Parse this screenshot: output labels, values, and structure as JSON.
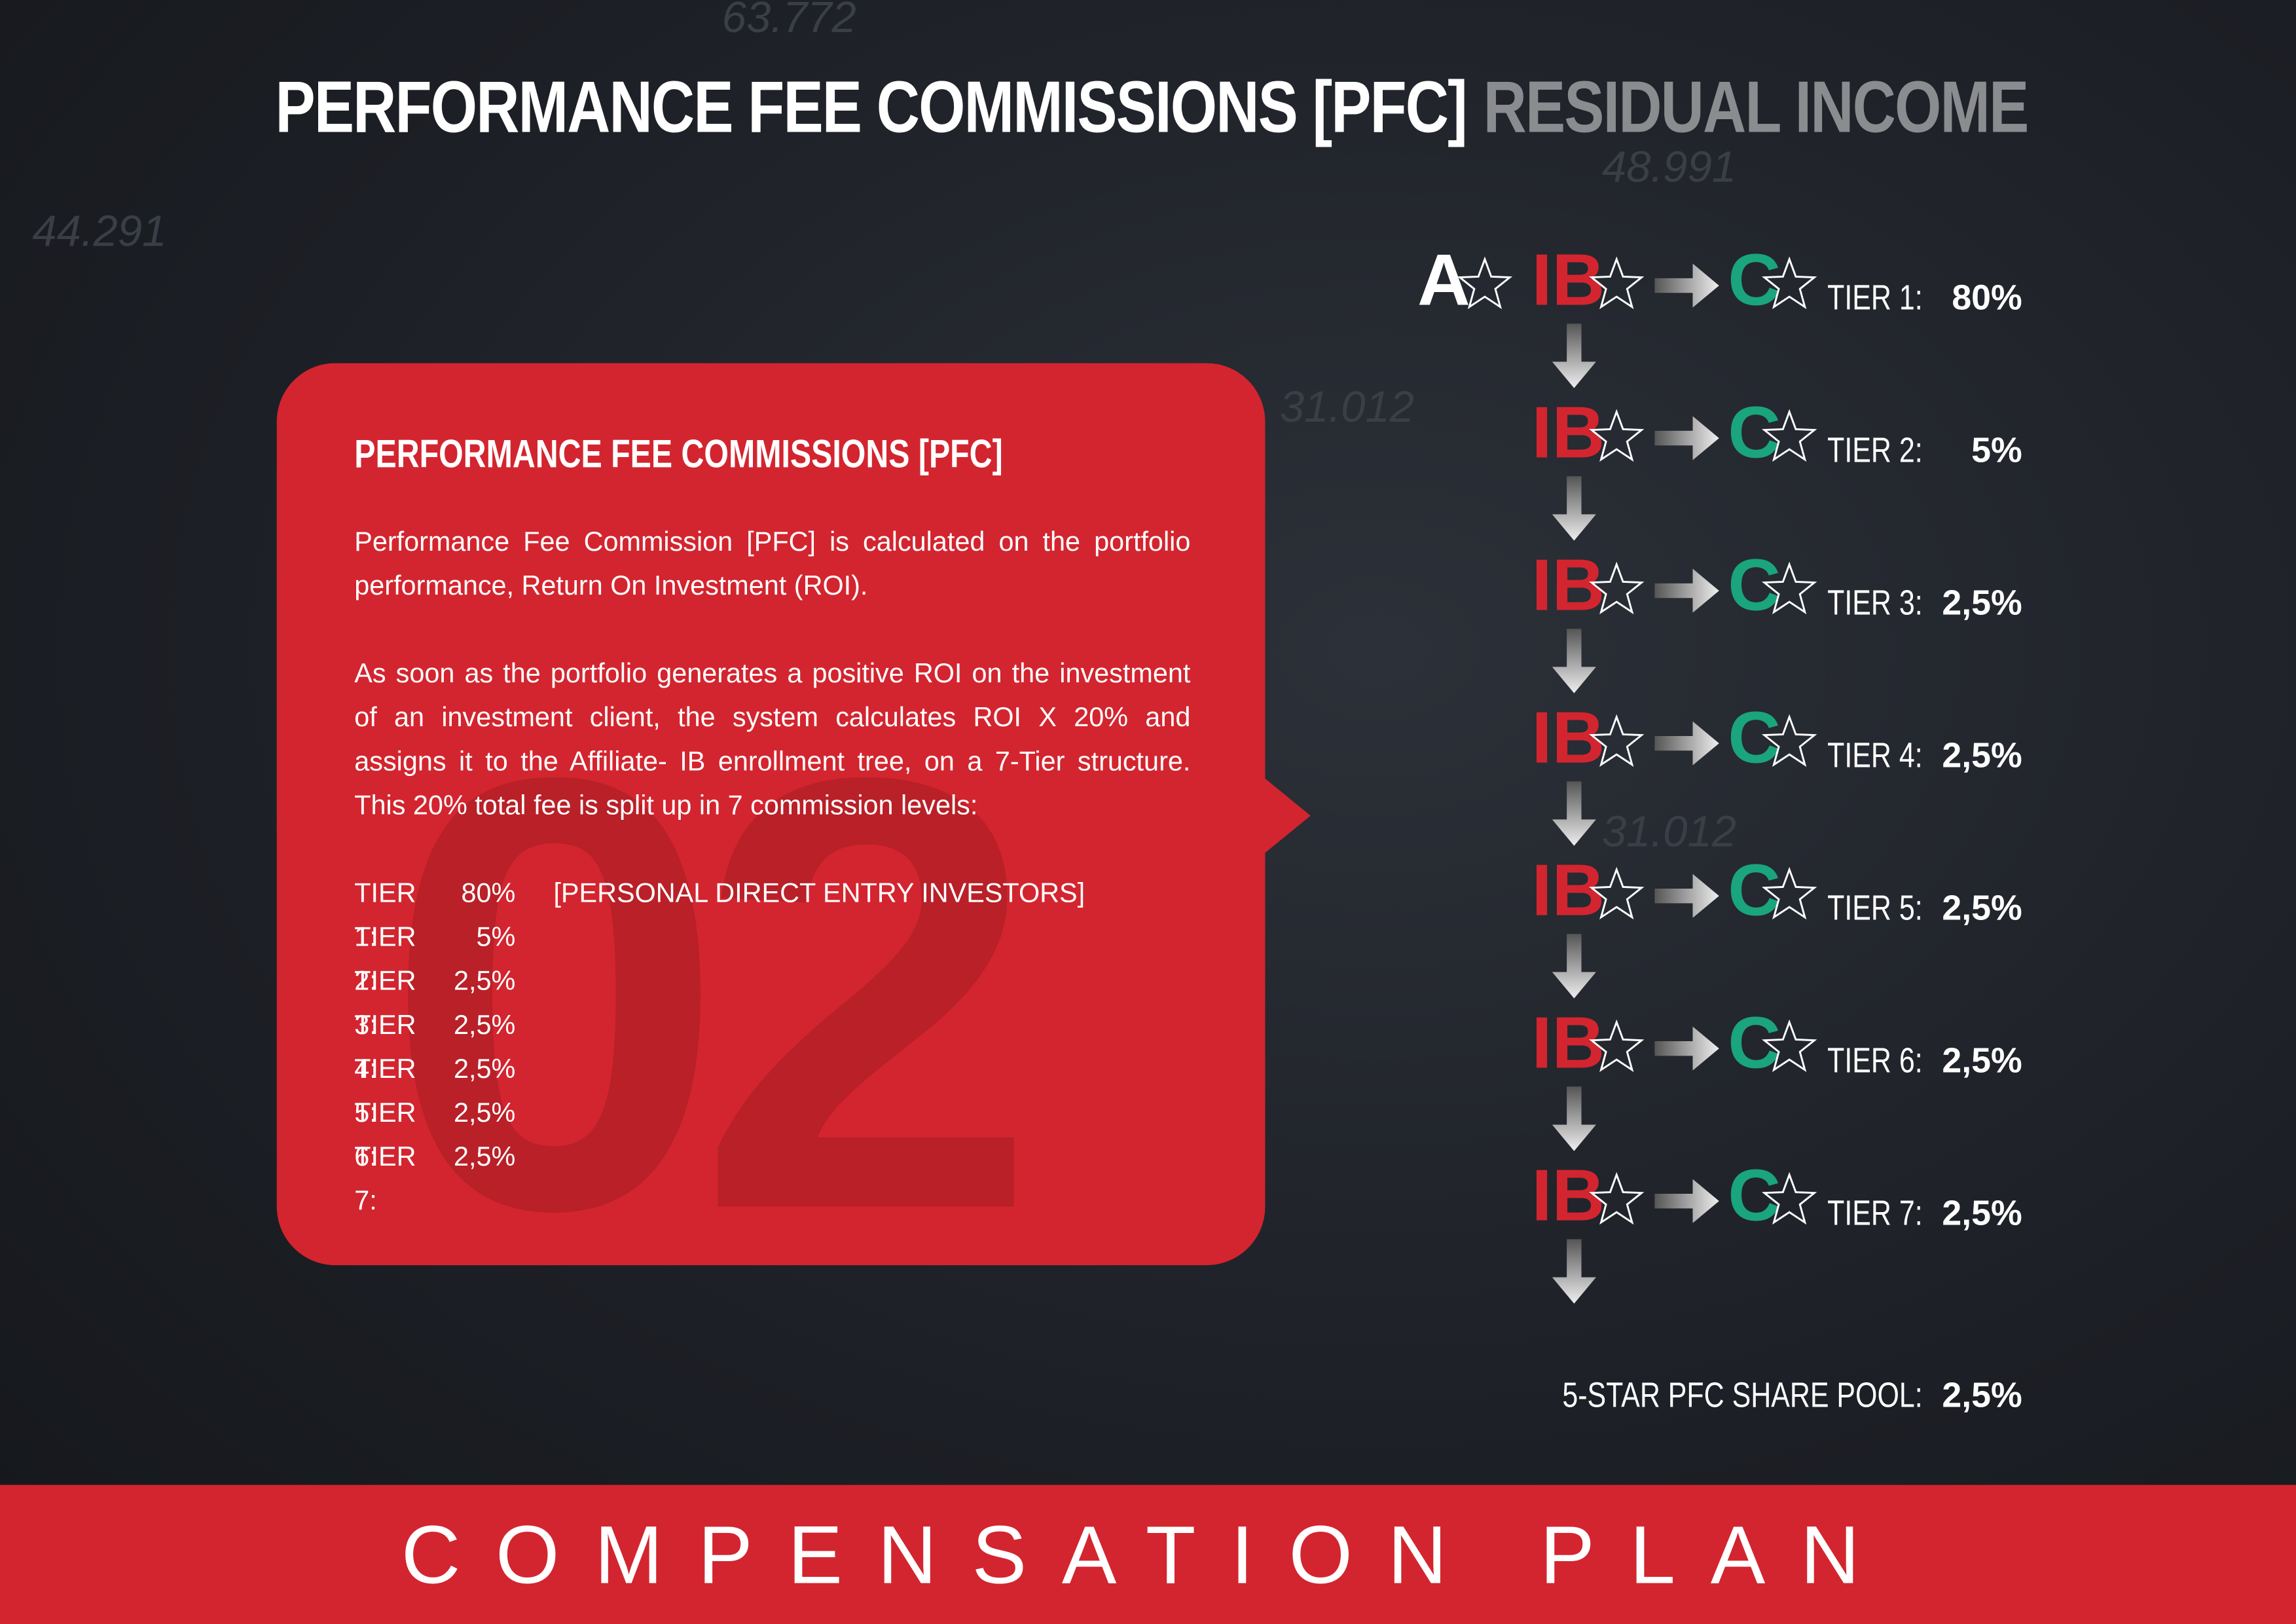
{
  "header": {
    "title": "PERFORMANCE FEE COMMISSIONS [PFC]",
    "subtitle": "RESIDUAL INCOME"
  },
  "background": {
    "labels": [
      "63.772",
      "44.291",
      "48.991",
      "31.012",
      "31.012"
    ]
  },
  "card": {
    "big_number": "02",
    "heading": "PERFORMANCE FEE COMMISSIONS [PFC]",
    "paragraphs": [
      "Performance Fee Commission [PFC] is calculated on the portfolio performance, Return On Investment (ROI).",
      "As soon as the portfolio generates a positive ROI on the investment of an investment client, the system calculates ROI X 20% and assigns it to the Affiliate- IB enrollment tree, on a 7-Tier structure. This 20% total fee is split up in 7 commission levels:"
    ],
    "tiers": [
      {
        "label": "TIER 1:",
        "value": "80%",
        "note": "[PERSONAL DIRECT ENTRY INVESTORS]"
      },
      {
        "label": "TIER 2:",
        "value": "5%"
      },
      {
        "label": "TIER 3:",
        "value": "2,5%"
      },
      {
        "label": "TIER 4:",
        "value": "2,5%"
      },
      {
        "label": "TIER 5:",
        "value": "2,5%"
      },
      {
        "label": "TIER 6:",
        "value": "2,5%"
      },
      {
        "label": "TIER 7:",
        "value": "2,5%"
      }
    ]
  },
  "diagram": {
    "root": "A",
    "tiers": [
      {
        "ib": "IB",
        "client": "C",
        "label": "TIER 1:",
        "value": "80%"
      },
      {
        "ib": "IB",
        "client": "C",
        "label": "TIER 2:",
        "value": "5%"
      },
      {
        "ib": "IB",
        "client": "C",
        "label": "TIER 3:",
        "value": "2,5%"
      },
      {
        "ib": "IB",
        "client": "C",
        "label": "TIER 4:",
        "value": "2,5%"
      },
      {
        "ib": "IB",
        "client": "C",
        "label": "TIER 5:",
        "value": "2,5%"
      },
      {
        "ib": "IB",
        "client": "C",
        "label": "TIER 6:",
        "value": "2,5%"
      },
      {
        "ib": "IB",
        "client": "C",
        "label": "TIER 7:",
        "value": "2,5%"
      }
    ],
    "pool": {
      "label": "5-STAR PFC SHARE POOL:",
      "value": "2,5%"
    }
  },
  "footer": {
    "title": "COMPENSATION PLAN"
  }
}
